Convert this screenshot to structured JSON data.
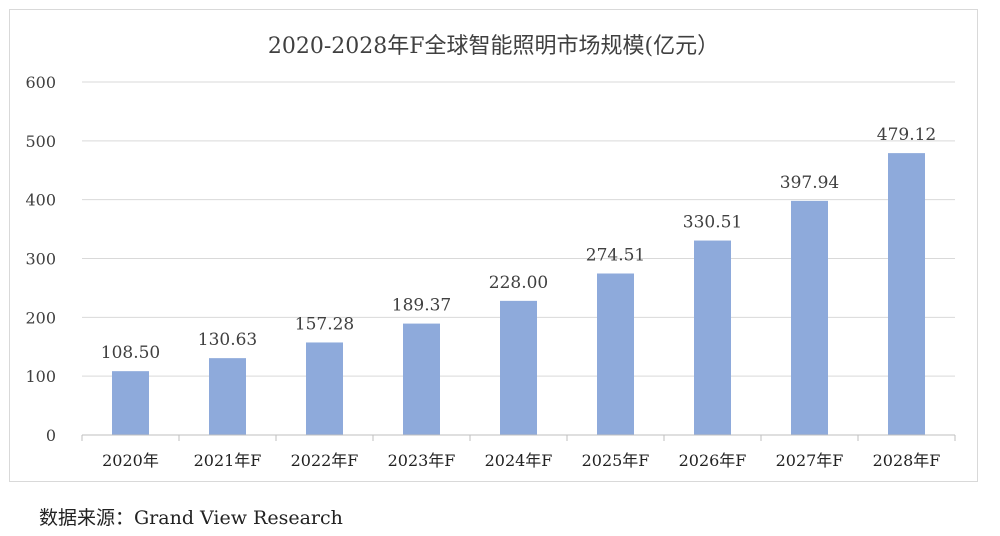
{
  "chart_data": {
    "type": "bar",
    "title": "2020-2028年F全球智能照明市场规模(亿元）",
    "categories": [
      "2020年",
      "2021年F",
      "2022年F",
      "2023年F",
      "2024年F",
      "2025年F",
      "2026年F",
      "2027年F",
      "2028年F"
    ],
    "values": [
      108.5,
      130.63,
      157.28,
      189.37,
      228.0,
      274.51,
      330.51,
      397.94,
      479.12
    ],
    "value_labels": [
      "108.50",
      "130.63",
      "157.28",
      "189.37",
      "228.00",
      "274.51",
      "330.51",
      "397.94",
      "479.12"
    ],
    "yticks": [
      "0",
      "100",
      "200",
      "300",
      "400",
      "500",
      "600"
    ],
    "ylim": [
      0,
      600
    ],
    "xlabel": "",
    "ylabel": "",
    "grid": true,
    "bar_color": "#8eaadb"
  },
  "source": "数据来源：Grand View Research"
}
